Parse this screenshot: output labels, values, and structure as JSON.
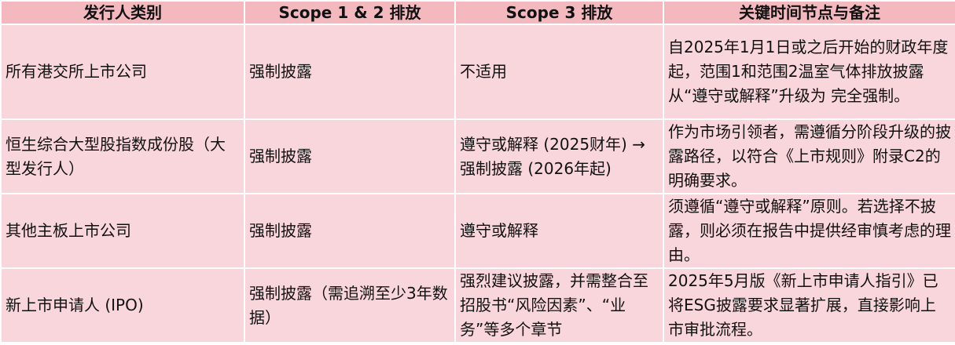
{
  "table": {
    "headers": [
      "发行人类别",
      "Scope 1 & 2 排放",
      "Scope 3 排放",
      "关键时间节点与备注"
    ],
    "rows": [
      [
        "所有港交所上市公司",
        "强制披露",
        "不适用",
        "自2025年1月1日或之后开始的财政年度起，范围1和范围2温室气体排放披露从“遵守或解释”升级为 完全强制。"
      ],
      [
        "恒生综合大型股指数成份股（大型发行人）",
        "强制披露",
        "遵守或解释 (2025财年) → 强制披露 (2026年起)",
        "作为市场引领者，需遵循分阶段升级的披露路径，以符合《上市规则》附录C2的明确要求。"
      ],
      [
        "其他主板上市公司",
        "强制披露",
        "遵守或解释",
        "须遵循“遵守或解释”原则。若选择不披露，则必须在报告中提供经审慎考虑的理由。"
      ],
      [
        "新上市申请人 (IPO)",
        "强制披露（需追溯至少3年数据）",
        "强烈建议披露，并需整合至招股书“风险因素”、“业务”等多个章节",
        "2025年5月版《新上市申请人指引》已将ESG披露要求显著扩展，直接影响上市审批流程。"
      ]
    ]
  },
  "colors": {
    "header_bg": "#f4b8bf",
    "cell_bg": "#f9d6db"
  }
}
